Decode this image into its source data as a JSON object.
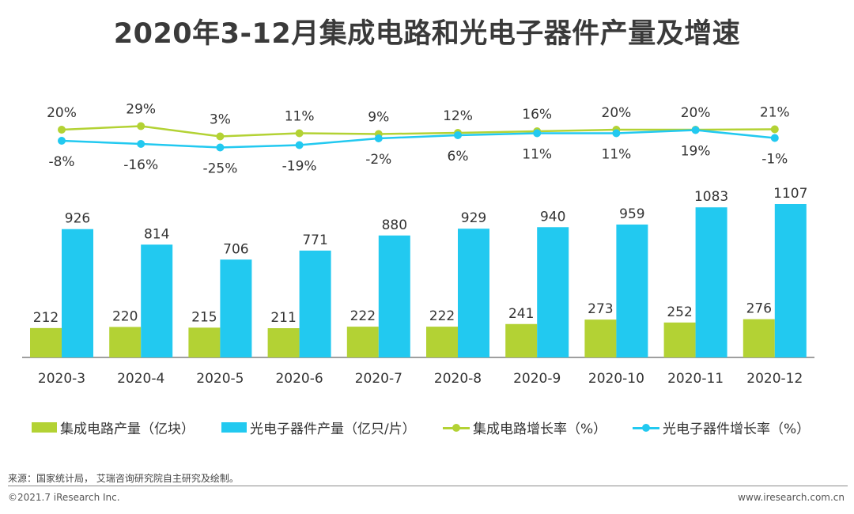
{
  "title": "2020年3-12月集成电路和光电子器件产量及增速",
  "colors": {
    "ic": "#b3d234",
    "opto": "#22c9f0",
    "axis": "#555555"
  },
  "chart_data": {
    "type": "bar+line",
    "categories": [
      "2020-3",
      "2020-4",
      "2020-5",
      "2020-6",
      "2020-7",
      "2020-8",
      "2020-9",
      "2020-10",
      "2020-11",
      "2020-12"
    ],
    "bar_series": [
      {
        "name": "集成电路产量（亿块）",
        "values": [
          212,
          220,
          215,
          211,
          222,
          222,
          241,
          273,
          252,
          276
        ],
        "labels": [
          "212",
          "220",
          "215",
          "211",
          "222",
          "222",
          "241",
          "273",
          "252",
          "276"
        ]
      },
      {
        "name": "光电子器件产量（亿只/片）",
        "values": [
          926,
          814,
          706,
          771,
          880,
          929,
          940,
          959,
          1083,
          1107
        ],
        "labels": [
          "926",
          "814",
          "706",
          "771",
          "880",
          "929",
          "940",
          "959",
          "1083",
          "1107"
        ]
      }
    ],
    "line_series": [
      {
        "name": "集成电路增长率（%）",
        "values": [
          20,
          29,
          3,
          11,
          9,
          12,
          16,
          20,
          20,
          21
        ],
        "labels": [
          "20%",
          "29%",
          "3%",
          "11%",
          "9%",
          "12%",
          "16%",
          "20%",
          "20%",
          "21%"
        ]
      },
      {
        "name": "光电子器件增长率（%）",
        "values": [
          -8,
          -16,
          -25,
          -19,
          -2,
          6,
          11,
          11,
          19,
          -1
        ],
        "labels": [
          "-8%",
          "-16%",
          "-25%",
          "-19%",
          "-2%",
          "6%",
          "11%",
          "11%",
          "19%",
          "-1%"
        ]
      }
    ],
    "bar_ylim": [
      0,
      1200
    ],
    "line_ylim": [
      -30,
      30
    ],
    "grid": false,
    "legend_position": "bottom"
  },
  "legend": [
    {
      "label": "集成电路产量（亿块）"
    },
    {
      "label": "光电子器件产量（亿只/片）"
    },
    {
      "label": "集成电路增长率（%）"
    },
    {
      "label": "光电子器件增长率（%）"
    }
  ],
  "footer": {
    "source": "来源：国家统计局， 艾瑞咨询研究院自主研究及绘制。",
    "copyright": "©2021.7 iResearch Inc.",
    "website": "www.iresearch.com.cn"
  }
}
